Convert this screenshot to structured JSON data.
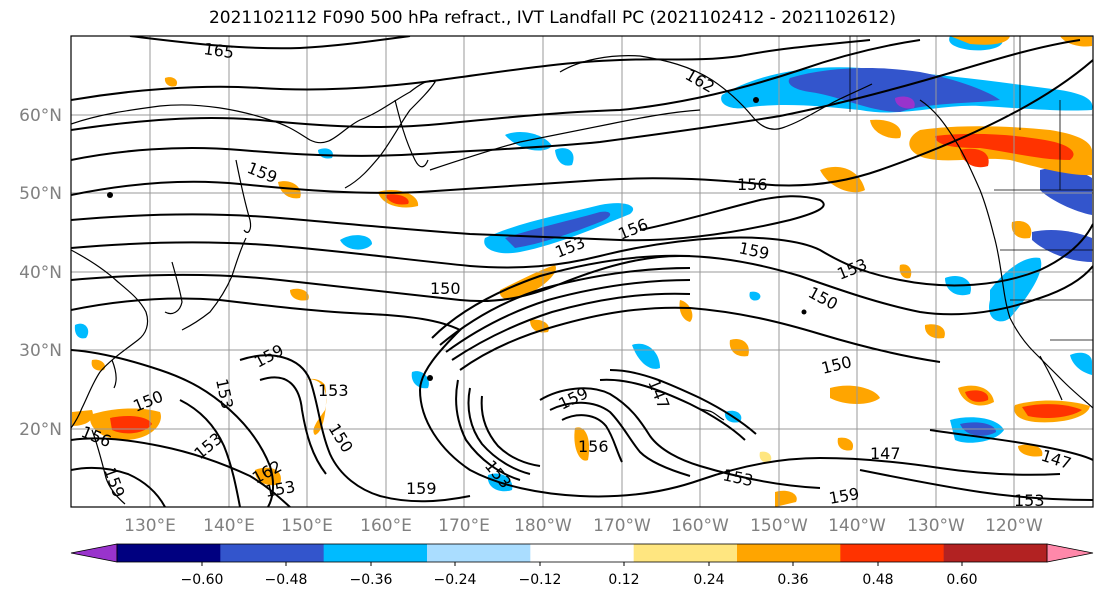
{
  "title": "2021102112 F090 500 hPa refract., IVT Landfall PC (2021102412 - 2021102612)",
  "latitude_labels": [
    "60°N",
    "50°N",
    "40°N",
    "30°N",
    "20°N"
  ],
  "longitude_labels": [
    "130°E",
    "140°E",
    "150°E",
    "160°E",
    "170°E",
    "180°W",
    "170°W",
    "160°W",
    "150°W",
    "140°W",
    "130°W",
    "120°W"
  ],
  "contour_labels": [
    "165",
    "162",
    "159",
    "156",
    "153",
    "159",
    "156",
    "150",
    "153",
    "150",
    "150",
    "159",
    "153",
    "150",
    "153",
    "150",
    "156",
    "159",
    "156",
    "147",
    "159",
    "153",
    "153",
    "147",
    "147",
    "153",
    "159",
    "162",
    "153",
    "159",
    "153"
  ],
  "colorbar": {
    "tick_labels": [
      "−0.60",
      "−0.48",
      "−0.36",
      "−0.24",
      "−0.12",
      "0.12",
      "0.24",
      "0.36",
      "0.48",
      "0.60"
    ],
    "colors": [
      "#9933cc",
      "#000080",
      "#3355cc",
      "#00bbff",
      "#aaddff",
      "#ffffff",
      "#ffe680",
      "#ffa500",
      "#ff3300",
      "#b22222",
      "#ff88aa"
    ]
  },
  "colors": {
    "contour": "#000000",
    "coastline": "#000000",
    "gridline": "#999999",
    "axis_label": "#808080"
  }
}
